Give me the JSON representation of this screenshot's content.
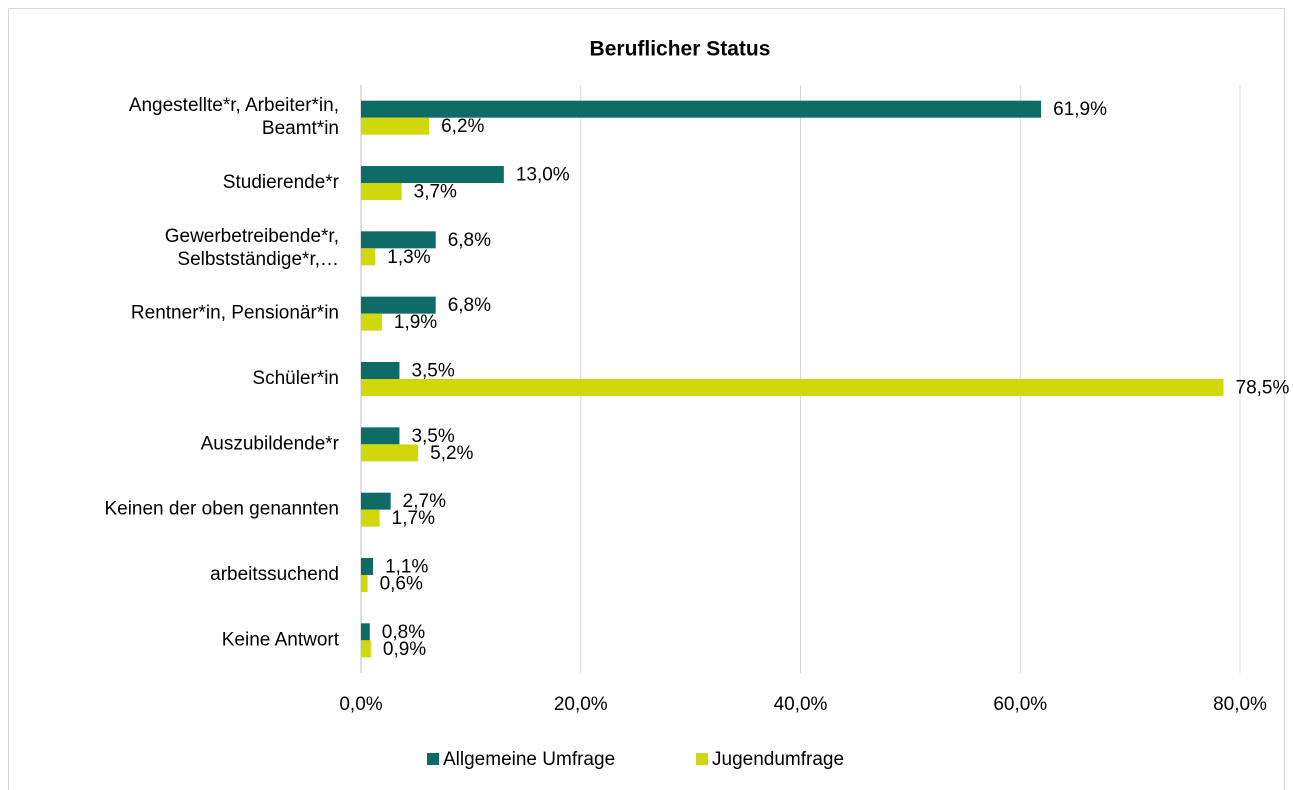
{
  "chart_data": {
    "type": "bar",
    "orientation": "horizontal",
    "title": "Beruflicher Status",
    "categories": [
      "Angestellte*r, Arbeiter*in, Beamt*in",
      "Studierende*r",
      "Gewerbetreibende*r, Selbstständige*r,…",
      "Rentner*in, Pensionär*in",
      "Schüler*in",
      "Auszubildende*r",
      "Keinen der oben genannten",
      "arbeitssuchend",
      "Keine Antwort"
    ],
    "series": [
      {
        "name": "Allgemeine Umfrage",
        "color": "#0e6b65",
        "values": [
          61.9,
          13.0,
          6.8,
          6.8,
          3.5,
          3.5,
          2.7,
          1.1,
          0.8
        ],
        "value_labels": [
          "61,9%",
          "13,0%",
          "6,8%",
          "6,8%",
          "3,5%",
          "3,5%",
          "2,7%",
          "1,1%",
          "0,8%"
        ]
      },
      {
        "name": "Jugendumfrage",
        "color": "#d0d70b",
        "values": [
          6.2,
          3.7,
          1.3,
          1.9,
          78.5,
          5.2,
          1.7,
          0.6,
          0.9
        ],
        "value_labels": [
          "6,2%",
          "3,7%",
          "1,3%",
          "1,9%",
          "78,5%",
          "5,2%",
          "1,7%",
          "0,6%",
          "0,9%"
        ]
      }
    ],
    "xlim": [
      0,
      80
    ],
    "xticks": [
      {
        "value": 0,
        "label": "0,0%"
      },
      {
        "value": 20,
        "label": "20,0%"
      },
      {
        "value": 40,
        "label": "40,0%"
      },
      {
        "value": 60,
        "label": "60,0%"
      },
      {
        "value": 80,
        "label": "80,0%"
      }
    ],
    "grid": true,
    "legend": "bottom"
  }
}
